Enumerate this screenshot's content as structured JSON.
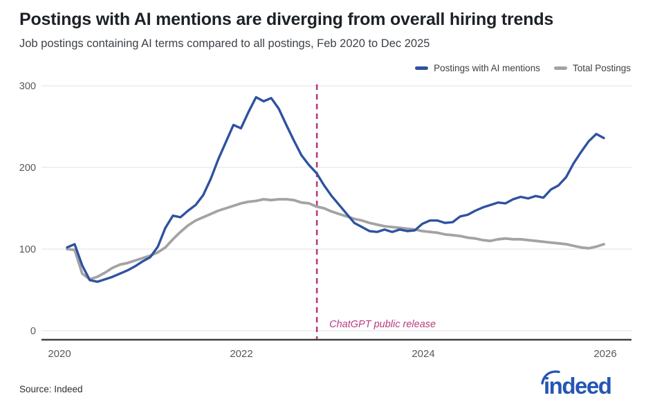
{
  "header": {
    "title": "Postings with AI mentions are diverging from overall hiring trends",
    "subtitle": "Job postings containing AI terms compared to all postings, Feb 2020 to Dec 2025"
  },
  "legend": {
    "items": [
      {
        "label": "Postings with AI mentions",
        "color": "#2f52a0"
      },
      {
        "label": "Total Postings",
        "color": "#a3a3a3"
      }
    ]
  },
  "chart_data": {
    "type": "line",
    "title": "Postings with AI mentions are diverging from overall hiring trends",
    "x_start": "2020-02",
    "x_end": "2025-12",
    "x_unit": "month",
    "xticks": [
      2020,
      2022,
      2024,
      2026
    ],
    "yticks": [
      0,
      100,
      200,
      300
    ],
    "ylim": [
      0,
      300
    ],
    "grid": "horizontal",
    "legend_position": "top-right",
    "series": [
      {
        "name": "Total Postings",
        "color": "#a3a3a3",
        "width": 3.8,
        "values": [
          100,
          99,
          70,
          63,
          66,
          71,
          77,
          81,
          83,
          86,
          89,
          92,
          96,
          102,
          112,
          121,
          129,
          135,
          139,
          143,
          147,
          150,
          153,
          156,
          158,
          159,
          161,
          160,
          161,
          161,
          160,
          157,
          156,
          152,
          150,
          146,
          143,
          140,
          137,
          135,
          132,
          130,
          128,
          127,
          126,
          125,
          124,
          122,
          121,
          120,
          118,
          117,
          116,
          114,
          113,
          111,
          110,
          112,
          113,
          112,
          112,
          111,
          110,
          109,
          108,
          107,
          106,
          104,
          102,
          101,
          103,
          106
        ]
      },
      {
        "name": "Postings with AI mentions",
        "color": "#2f52a0",
        "width": 3.4,
        "values": [
          102,
          106,
          80,
          62,
          60,
          63,
          66,
          70,
          74,
          79,
          85,
          90,
          103,
          126,
          141,
          139,
          147,
          154,
          166,
          186,
          210,
          231,
          252,
          248,
          268,
          286,
          281,
          285,
          272,
          252,
          233,
          215,
          203,
          193,
          178,
          165,
          154,
          143,
          132,
          127,
          122,
          121,
          124,
          121,
          124,
          122,
          123,
          131,
          135,
          135,
          132,
          133,
          140,
          142,
          147,
          151,
          154,
          157,
          156,
          161,
          164,
          162,
          165,
          163,
          173,
          178,
          188,
          205,
          219,
          232,
          241,
          236
        ]
      }
    ],
    "event": {
      "label": "ChatGPT public release",
      "year": 2022.83,
      "color": "#b83b80"
    }
  },
  "footer": {
    "source": "Source: Indeed",
    "logo_text": "indeed",
    "logo_color": "#2456b4"
  }
}
